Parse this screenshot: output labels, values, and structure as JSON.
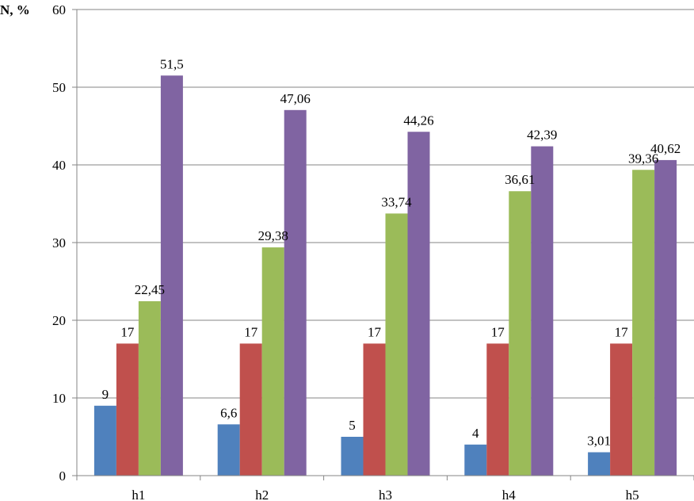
{
  "chart_data": {
    "type": "bar",
    "ylabel": "N, %",
    "xlabel": "",
    "ylim": [
      0,
      60
    ],
    "yticks": [
      0,
      10,
      20,
      30,
      40,
      50,
      60
    ],
    "grid": "horizontal",
    "legend": "none",
    "categories": [
      "h1",
      "h2",
      "h3",
      "h4",
      "h5"
    ],
    "series": [
      {
        "color": "#4F81BD",
        "values": [
          9,
          6.6,
          5,
          4,
          3.01
        ],
        "labels": [
          "9",
          "6,6",
          "5",
          "4",
          "3,01"
        ]
      },
      {
        "color": "#C0504D",
        "values": [
          17,
          17,
          17,
          17,
          17
        ],
        "labels": [
          "17",
          "17",
          "17",
          "17",
          "17"
        ]
      },
      {
        "color": "#9BBB59",
        "values": [
          22.45,
          29.38,
          33.74,
          36.61,
          39.36
        ],
        "labels": [
          "22,45",
          "29,38",
          "33,74",
          "36,61",
          "39,36"
        ]
      },
      {
        "color": "#8064A2",
        "values": [
          51.5,
          47.06,
          44.26,
          42.39,
          40.62
        ],
        "labels": [
          "51,5",
          "47,06",
          "44,26",
          "42,39",
          "40,62"
        ]
      }
    ]
  }
}
